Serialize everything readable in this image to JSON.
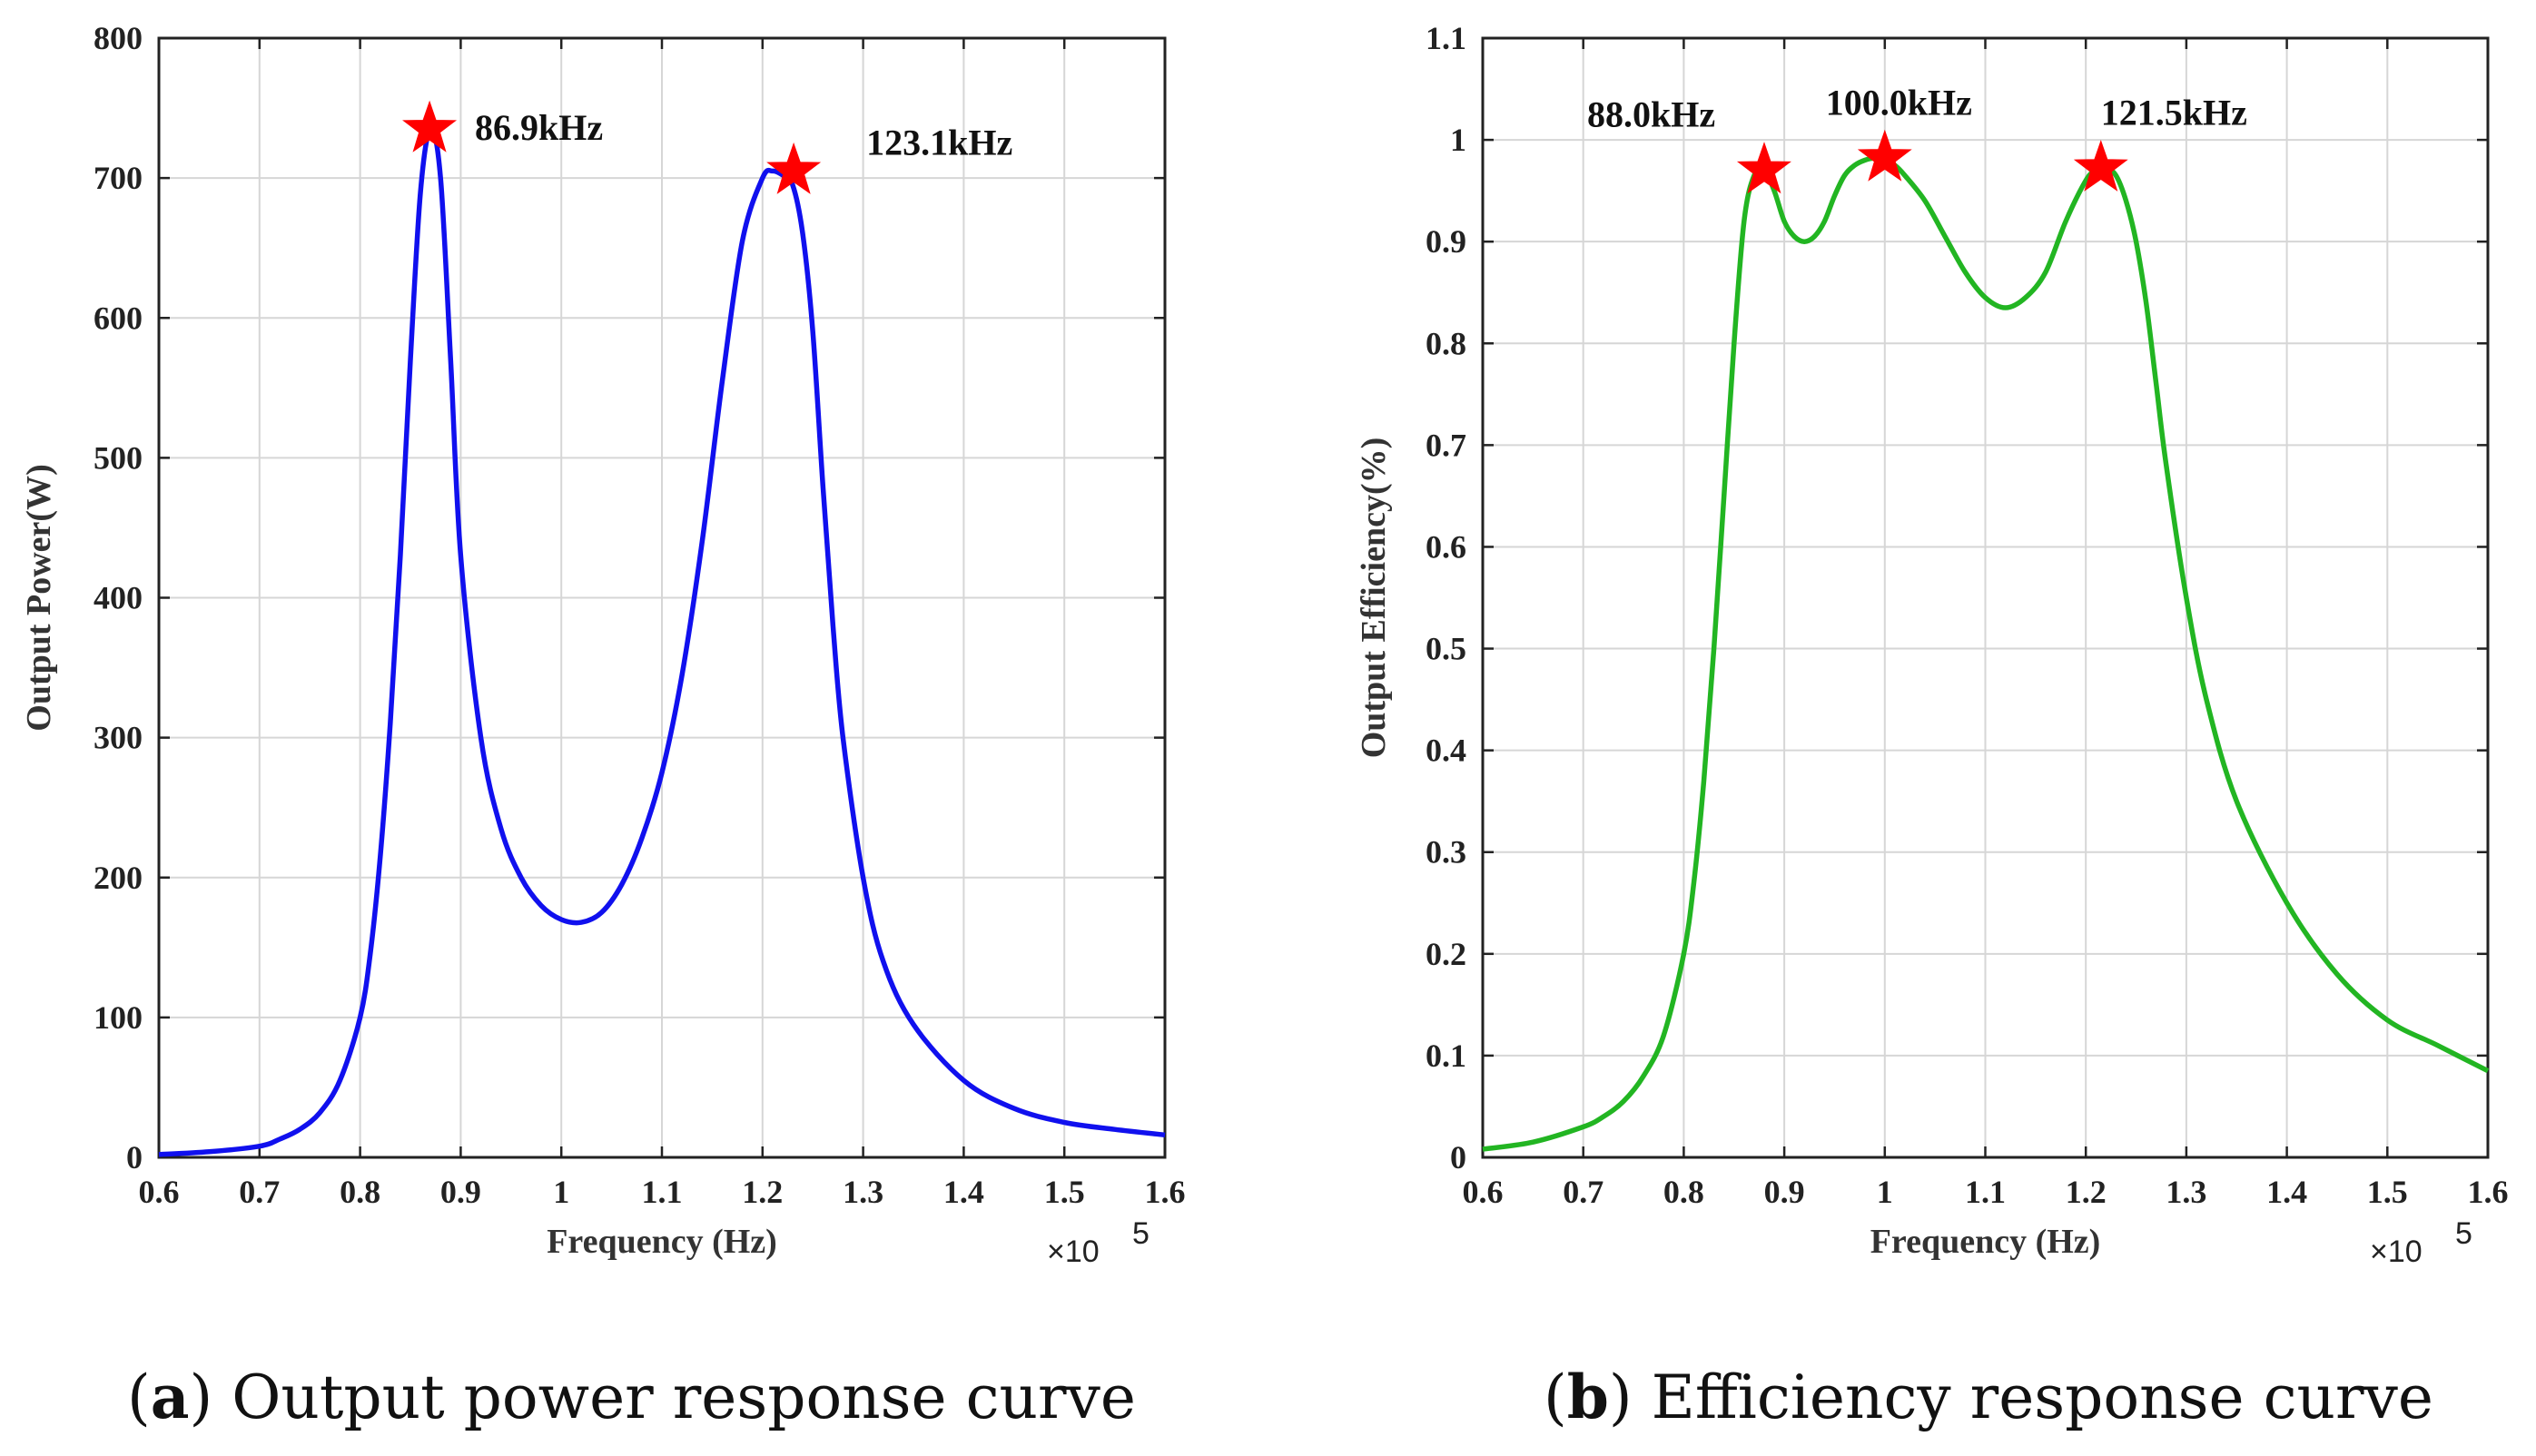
{
  "chart_data": [
    {
      "type": "line",
      "panel": "a",
      "caption_letter": "a",
      "caption_text": "Output power response curve",
      "xlabel": "Frequency (Hz)",
      "ylabel": "Output Power(W)",
      "xlim": [
        0.6,
        1.6
      ],
      "ylim": [
        0,
        800
      ],
      "xticks": [
        "0.6",
        "0.7",
        "0.8",
        "0.9",
        "1",
        "1.1",
        "1.2",
        "1.3",
        "1.4",
        "1.5",
        "1.6"
      ],
      "yticks": [
        "0",
        "100",
        "200",
        "300",
        "400",
        "500",
        "600",
        "700",
        "800"
      ],
      "x_multiplier": "×10",
      "x_exponent": "5",
      "grid": true,
      "series": [
        {
          "name": "Output Power",
          "color": "#1010ee",
          "x": [
            0.6,
            0.65,
            0.7,
            0.72,
            0.74,
            0.76,
            0.78,
            0.8,
            0.81,
            0.82,
            0.83,
            0.84,
            0.85,
            0.86,
            0.87,
            0.88,
            0.89,
            0.9,
            0.92,
            0.94,
            0.96,
            0.98,
            1.0,
            1.02,
            1.04,
            1.06,
            1.08,
            1.1,
            1.12,
            1.14,
            1.16,
            1.18,
            1.2,
            1.21,
            1.22,
            1.23,
            1.24,
            1.25,
            1.26,
            1.27,
            1.28,
            1.3,
            1.32,
            1.35,
            1.4,
            1.45,
            1.5,
            1.55,
            1.6
          ],
          "y": [
            2,
            4,
            8,
            13,
            20,
            32,
            55,
            100,
            145,
            215,
            310,
            430,
            570,
            690,
            735,
            700,
            570,
            430,
            300,
            235,
            200,
            180,
            170,
            168,
            175,
            195,
            228,
            275,
            345,
            440,
            555,
            655,
            700,
            705,
            702,
            695,
            660,
            590,
            480,
            380,
            300,
            200,
            140,
            95,
            55,
            35,
            25,
            20,
            16
          ]
        }
      ],
      "peaks": [
        {
          "x": 0.869,
          "y": 735,
          "label": "86.9kHz"
        },
        {
          "x": 1.231,
          "y": 705,
          "label": "123.1kHz"
        }
      ],
      "marker_color": "#ff0000"
    },
    {
      "type": "line",
      "panel": "b",
      "caption_letter": "b",
      "caption_text": "Efficiency response curve",
      "xlabel": "Frequency (Hz)",
      "ylabel": "Output Efficiency(%)",
      "xlim": [
        0.6,
        1.6
      ],
      "ylim": [
        0,
        1.1
      ],
      "xticks": [
        "0.6",
        "0.7",
        "0.8",
        "0.9",
        "1",
        "1.1",
        "1.2",
        "1.3",
        "1.4",
        "1.5",
        "1.6"
      ],
      "yticks": [
        "0",
        "0.1",
        "0.2",
        "0.3",
        "0.4",
        "0.5",
        "0.6",
        "0.7",
        "0.8",
        "0.9",
        "1",
        "1.1"
      ],
      "x_multiplier": "×10",
      "x_exponent": "5",
      "grid": true,
      "series": [
        {
          "name": "Output Efficiency",
          "color": "#22b522",
          "x": [
            0.6,
            0.65,
            0.7,
            0.72,
            0.74,
            0.76,
            0.78,
            0.8,
            0.81,
            0.82,
            0.83,
            0.84,
            0.85,
            0.86,
            0.87,
            0.88,
            0.89,
            0.9,
            0.91,
            0.92,
            0.93,
            0.94,
            0.95,
            0.96,
            0.97,
            0.98,
            0.99,
            1.0,
            1.01,
            1.02,
            1.04,
            1.06,
            1.08,
            1.1,
            1.12,
            1.14,
            1.16,
            1.18,
            1.2,
            1.21,
            1.22,
            1.23,
            1.24,
            1.25,
            1.26,
            1.27,
            1.28,
            1.3,
            1.32,
            1.35,
            1.4,
            1.45,
            1.5,
            1.55,
            1.6
          ],
          "y": [
            0.008,
            0.015,
            0.03,
            0.04,
            0.055,
            0.08,
            0.12,
            0.2,
            0.27,
            0.37,
            0.5,
            0.65,
            0.8,
            0.92,
            0.965,
            0.97,
            0.95,
            0.92,
            0.905,
            0.9,
            0.905,
            0.92,
            0.945,
            0.965,
            0.975,
            0.98,
            0.982,
            0.98,
            0.975,
            0.965,
            0.94,
            0.905,
            0.87,
            0.845,
            0.835,
            0.845,
            0.87,
            0.92,
            0.96,
            0.97,
            0.972,
            0.965,
            0.94,
            0.9,
            0.84,
            0.76,
            0.68,
            0.55,
            0.45,
            0.35,
            0.25,
            0.18,
            0.135,
            0.11,
            0.085
          ]
        }
      ],
      "peaks": [
        {
          "x": 0.88,
          "y": 0.97,
          "label": "88.0kHz"
        },
        {
          "x": 1.0,
          "y": 0.982,
          "label": "100.0kHz"
        },
        {
          "x": 1.215,
          "y": 0.972,
          "label": "121.5kHz"
        }
      ],
      "marker_color": "#ff0000"
    }
  ]
}
